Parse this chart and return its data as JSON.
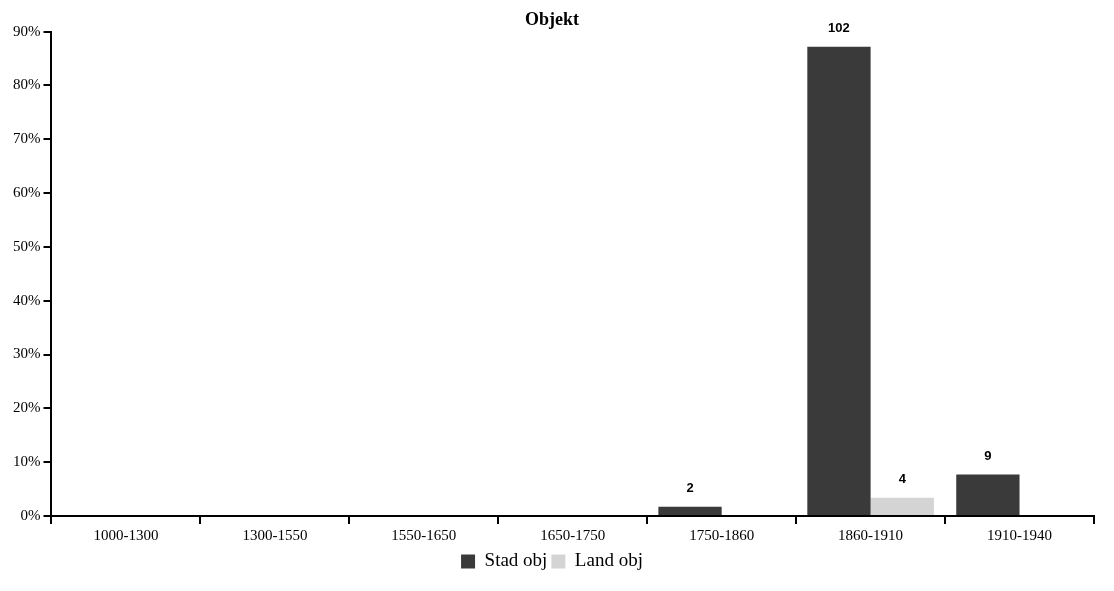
{
  "chart_data": {
    "type": "bar",
    "title": "Objekt",
    "categories": [
      "1000-1300",
      "1300-1550",
      "1550-1650",
      "1650-1750",
      "1750-1860",
      "1860-1910",
      "1910-1940"
    ],
    "series": [
      {
        "name": "Stad obj",
        "color": "#3a3a3a",
        "values": [
          null,
          null,
          null,
          null,
          1.7,
          87.2,
          7.7
        ]
      },
      {
        "name": "Land obj",
        "color": "#d4d4d4",
        "values": [
          null,
          null,
          null,
          null,
          null,
          3.4,
          null
        ]
      }
    ],
    "annotations": [
      {
        "text": "2",
        "x": "1750-1860",
        "y": 1.7
      },
      {
        "text": "102",
        "x": "1860-1910",
        "y": 87.2
      },
      {
        "text": "4",
        "x": "1860-1910",
        "y": 3.4
      },
      {
        "text": "9",
        "x": "1910-1940",
        "y": 7.7
      }
    ],
    "ylim": [
      0,
      90
    ],
    "yticks": [
      {
        "value": 0,
        "label": "0%"
      },
      {
        "value": 10,
        "label": "10%"
      },
      {
        "value": 20,
        "label": "20%"
      },
      {
        "value": 30,
        "label": "30%"
      },
      {
        "value": 40,
        "label": "40%"
      },
      {
        "value": 50,
        "label": "50%"
      },
      {
        "value": 60,
        "label": "60%"
      },
      {
        "value": 70,
        "label": "70%"
      },
      {
        "value": 80,
        "label": "80%"
      },
      {
        "value": 90,
        "label": "90%"
      }
    ],
    "grid": false,
    "legend": "bottom"
  }
}
